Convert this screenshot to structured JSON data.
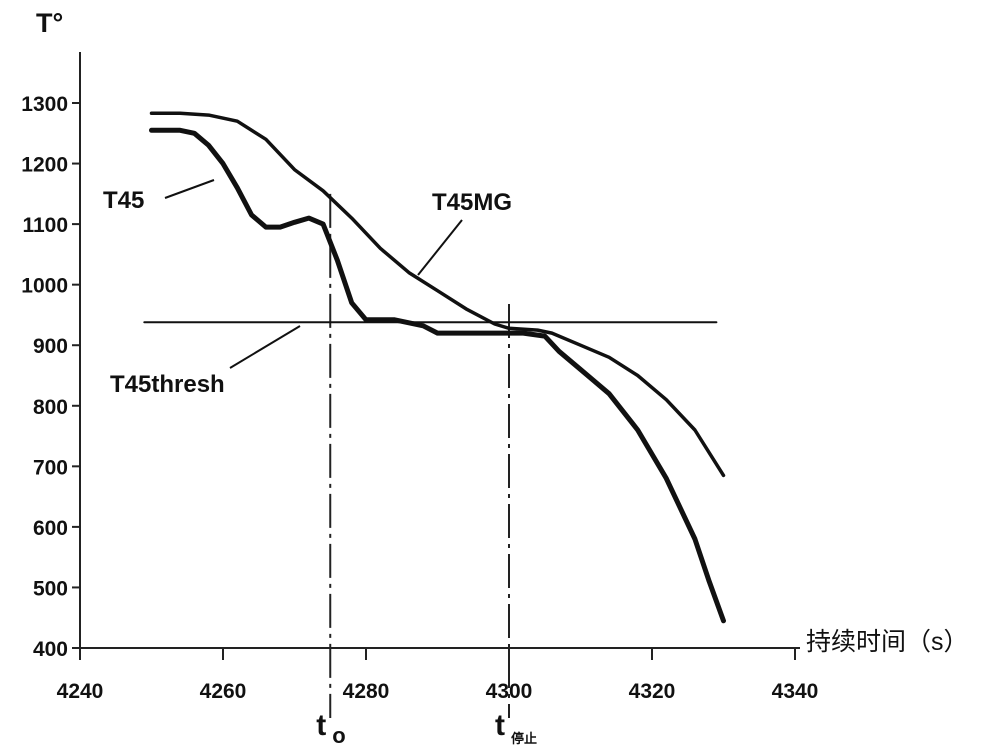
{
  "chart_data": {
    "type": "line",
    "ylabel": "T°",
    "xlabel": "持续时间（s）",
    "xlim": [
      4240,
      4340
    ],
    "ylim": [
      400,
      1300
    ],
    "xticks": [
      4240,
      4260,
      4280,
      4300,
      4320,
      4340
    ],
    "yticks": [
      400,
      500,
      600,
      700,
      800,
      900,
      1000,
      1100,
      1200,
      1300
    ],
    "grid": false,
    "series": [
      {
        "name": "T45",
        "x": [
          4250,
          4254,
          4256,
          4258,
          4260,
          4262,
          4264,
          4266,
          4268,
          4270,
          4272,
          4274,
          4276,
          4278,
          4280,
          4284,
          4288,
          4290,
          4294,
          4298,
          4302,
          4305,
          4307,
          4310,
          4314,
          4318,
          4322,
          4326,
          4328,
          4330
        ],
        "y": [
          1255,
          1255,
          1250,
          1230,
          1200,
          1160,
          1115,
          1095,
          1095,
          1103,
          1110,
          1100,
          1040,
          970,
          942,
          942,
          932,
          920,
          920,
          920,
          920,
          915,
          890,
          860,
          820,
          760,
          680,
          580,
          510,
          445
        ]
      },
      {
        "name": "T45MG",
        "x": [
          4250,
          4254,
          4258,
          4262,
          4266,
          4270,
          4274,
          4278,
          4282,
          4286,
          4290,
          4294,
          4298,
          4300,
          4304,
          4306,
          4310,
          4314,
          4318,
          4322,
          4326,
          4330
        ],
        "y": [
          1283,
          1283,
          1280,
          1270,
          1240,
          1190,
          1155,
          1110,
          1060,
          1020,
          990,
          960,
          935,
          928,
          925,
          920,
          900,
          880,
          850,
          810,
          760,
          685
        ]
      },
      {
        "name": "T45thresh",
        "x": [
          4249,
          4329
        ],
        "y": [
          938,
          938
        ]
      }
    ],
    "markers": [
      {
        "label": "t",
        "subscript": "o",
        "x": 4275,
        "y_top": 1150
      },
      {
        "label": "t",
        "subscript": "停止",
        "x": 4300,
        "y_top": 968
      }
    ]
  }
}
